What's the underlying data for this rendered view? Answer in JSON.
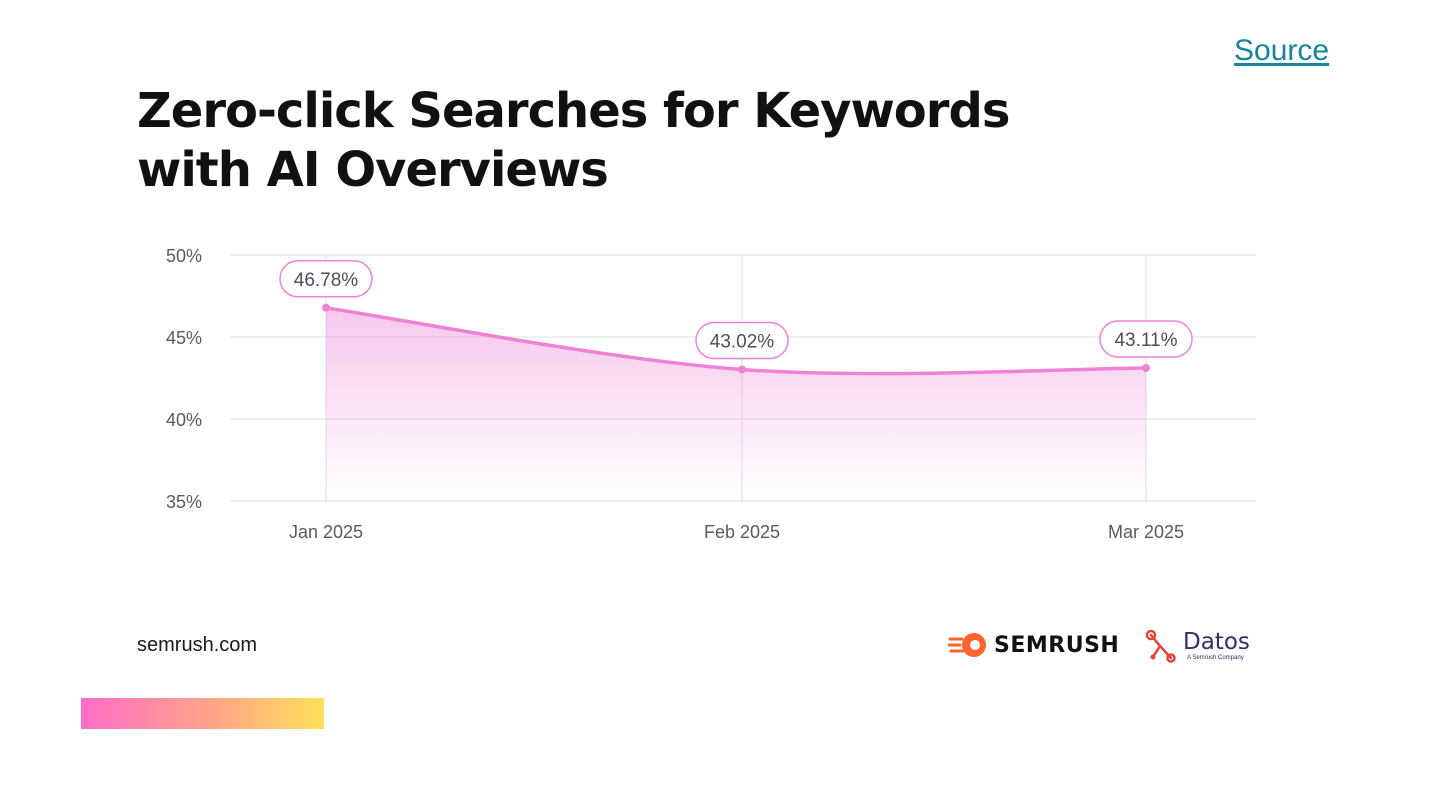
{
  "source_link": "Source",
  "title_lines": [
    "Zero-click Searches for Keywords",
    "with AI Overviews"
  ],
  "footer": {
    "site": "semrush.com",
    "semrush_wordmark": "SEMRUSH",
    "datos_name": "Datos",
    "datos_tagline": "A Semrush Company"
  },
  "colors": {
    "line": "#ee82d4",
    "grid": "#dde6f0",
    "semrush_orange": "#ff642d",
    "datos_red": "#e0443a",
    "link": "#17849a"
  },
  "chart_data": {
    "type": "area",
    "categories": [
      "Jan 2025",
      "Feb 2025",
      "Mar 2025"
    ],
    "series": [
      {
        "values": [
          46.78,
          43.02,
          43.11
        ],
        "labels": [
          "46.78%",
          "43.02%",
          "43.11%"
        ]
      }
    ],
    "y_ticks": [
      50,
      45,
      40,
      35
    ],
    "y_tick_labels": [
      "50%",
      "45%",
      "40%",
      "35%"
    ],
    "ylim": [
      35,
      50
    ],
    "grid": true,
    "legend": "none"
  }
}
